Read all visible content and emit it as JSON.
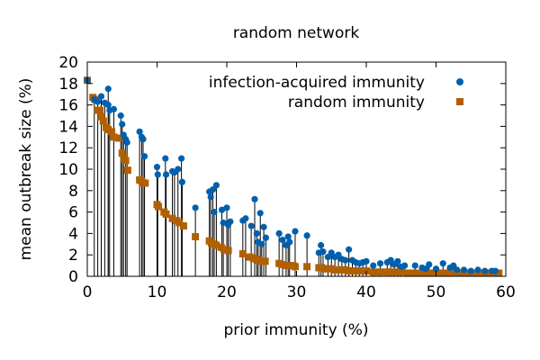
{
  "chart_data": {
    "type": "scatter",
    "title": "random network",
    "xlabel": "prior immunity (%)",
    "ylabel": "mean outbreak size (%)",
    "xlim": [
      0,
      60
    ],
    "ylim": [
      0,
      20
    ],
    "xticks": [
      0,
      10,
      20,
      30,
      40,
      50,
      60
    ],
    "yticks": [
      0,
      2,
      4,
      6,
      8,
      10,
      12,
      14,
      16,
      18,
      20
    ],
    "grid": false,
    "legend_position": "top-right",
    "series": [
      {
        "name": "infection-acquired immunity",
        "marker": "circle",
        "color": "#0060ad",
        "points": [
          [
            0,
            18.3
          ],
          [
            1,
            16.5
          ],
          [
            1.5,
            16.3
          ],
          [
            2,
            16.8
          ],
          [
            2.5,
            16.2
          ],
          [
            3,
            17.5
          ],
          [
            3,
            16
          ],
          [
            3.2,
            15.5
          ],
          [
            3.8,
            15.6
          ],
          [
            4.8,
            15
          ],
          [
            5,
            14.2
          ],
          [
            5.2,
            13.2
          ],
          [
            5.5,
            12.8
          ],
          [
            5.7,
            12.5
          ],
          [
            7.5,
            13.5
          ],
          [
            7.8,
            13
          ],
          [
            8,
            12.8
          ],
          [
            8.2,
            11.2
          ],
          [
            10,
            10.2
          ],
          [
            10.1,
            9.5
          ],
          [
            11.2,
            11
          ],
          [
            11.3,
            9.5
          ],
          [
            12.2,
            9.8
          ],
          [
            12.5,
            9.7
          ],
          [
            13,
            10
          ],
          [
            13.5,
            11
          ],
          [
            13.6,
            8.8
          ],
          [
            15.5,
            6.4
          ],
          [
            17.5,
            7.9
          ],
          [
            17.7,
            7.4
          ],
          [
            18,
            8.1
          ],
          [
            18.2,
            6
          ],
          [
            18.5,
            8.5
          ],
          [
            19.3,
            6.2
          ],
          [
            19.5,
            5
          ],
          [
            20,
            6.4
          ],
          [
            20.2,
            4.8
          ],
          [
            20.5,
            5.1
          ],
          [
            22.3,
            5.2
          ],
          [
            22.7,
            5.4
          ],
          [
            23.5,
            4.7
          ],
          [
            24,
            7.2
          ],
          [
            24.3,
            4
          ],
          [
            24.5,
            3.2
          ],
          [
            24.8,
            5.9
          ],
          [
            25,
            3
          ],
          [
            25.3,
            4.6
          ],
          [
            25.6,
            3.6
          ],
          [
            27.5,
            4
          ],
          [
            28,
            3.4
          ],
          [
            28.5,
            2.9
          ],
          [
            28.8,
            3.7
          ],
          [
            29,
            3.2
          ],
          [
            29.8,
            4.2
          ],
          [
            31.5,
            3.8
          ],
          [
            33.2,
            2.2
          ],
          [
            33.5,
            2.9
          ],
          [
            33.8,
            2.3
          ],
          [
            34.5,
            1.8
          ],
          [
            35,
            2.2
          ],
          [
            35.5,
            1.8
          ],
          [
            36,
            2
          ],
          [
            36.5,
            1.6
          ],
          [
            37,
            1.5
          ],
          [
            37.5,
            2.5
          ],
          [
            38,
            1.5
          ],
          [
            38.5,
            1.3
          ],
          [
            39,
            1.2
          ],
          [
            39.5,
            1.3
          ],
          [
            40,
            1.4
          ],
          [
            41,
            1
          ],
          [
            42,
            1.2
          ],
          [
            43,
            1.3
          ],
          [
            43.5,
            1.5
          ],
          [
            44,
            1.1
          ],
          [
            44.5,
            1.4
          ],
          [
            45,
            0.9
          ],
          [
            45.5,
            1
          ],
          [
            47,
            1
          ],
          [
            48,
            0.8
          ],
          [
            48.5,
            0.7
          ],
          [
            49,
            1.1
          ],
          [
            50,
            0.7
          ],
          [
            51,
            1.2
          ],
          [
            52,
            0.8
          ],
          [
            52.5,
            1
          ],
          [
            53,
            0.6
          ],
          [
            54,
            0.6
          ],
          [
            55,
            0.5
          ],
          [
            56,
            0.6
          ],
          [
            57,
            0.5
          ],
          [
            58,
            0.5
          ],
          [
            58.5,
            0.5
          ]
        ]
      },
      {
        "name": "random immunity",
        "marker": "square",
        "color": "#b06000",
        "points": [
          [
            0,
            18.3
          ],
          [
            0.8,
            16.7
          ],
          [
            1.1,
            16.5
          ],
          [
            1.5,
            15.5
          ],
          [
            1.8,
            15.5
          ],
          [
            2,
            14.9
          ],
          [
            2.3,
            14.5
          ],
          [
            2.7,
            13.9
          ],
          [
            3,
            13.7
          ],
          [
            3.5,
            13.5
          ],
          [
            3.8,
            13
          ],
          [
            4.5,
            12.9
          ],
          [
            5,
            11.5
          ],
          [
            5.3,
            11
          ],
          [
            5.5,
            10.8
          ],
          [
            5.8,
            9.9
          ],
          [
            7.5,
            9
          ],
          [
            7.8,
            8.9
          ],
          [
            8,
            8.7
          ],
          [
            8.3,
            8.7
          ],
          [
            10,
            6.7
          ],
          [
            10.2,
            6.5
          ],
          [
            11,
            6
          ],
          [
            11.3,
            5.8
          ],
          [
            12.2,
            5.4
          ],
          [
            12.8,
            5.2
          ],
          [
            13.2,
            5
          ],
          [
            13.8,
            4.7
          ],
          [
            15.5,
            3.7
          ],
          [
            17.5,
            3.3
          ],
          [
            17.8,
            3.1
          ],
          [
            18.2,
            3
          ],
          [
            18.5,
            2.9
          ],
          [
            19.2,
            2.7
          ],
          [
            19.6,
            2.5
          ],
          [
            20.2,
            2.4
          ],
          [
            22.3,
            2.1
          ],
          [
            23.3,
            1.8
          ],
          [
            23.8,
            1.7
          ],
          [
            24.2,
            1.6
          ],
          [
            24.6,
            1.5
          ],
          [
            25,
            1.4
          ],
          [
            25.5,
            1.4
          ],
          [
            27.5,
            1.2
          ],
          [
            28,
            1.1
          ],
          [
            28.5,
            1
          ],
          [
            29,
            1
          ],
          [
            29.5,
            1
          ],
          [
            29.8,
            0.9
          ],
          [
            31.5,
            0.9
          ],
          [
            33.2,
            0.8
          ],
          [
            33.6,
            0.8
          ],
          [
            34,
            0.7
          ],
          [
            34.5,
            0.7
          ],
          [
            35,
            0.7
          ],
          [
            35.5,
            0.6
          ],
          [
            36,
            0.6
          ],
          [
            36.5,
            0.6
          ],
          [
            37,
            0.6
          ],
          [
            37.5,
            0.5
          ],
          [
            38,
            0.5
          ],
          [
            38.5,
            0.5
          ],
          [
            39,
            0.5
          ],
          [
            39.5,
            0.5
          ],
          [
            40,
            0.5
          ],
          [
            41,
            0.4
          ],
          [
            42,
            0.4
          ],
          [
            43,
            0.4
          ],
          [
            44,
            0.4
          ],
          [
            45,
            0.4
          ],
          [
            46,
            0.3
          ],
          [
            47,
            0.3
          ],
          [
            48,
            0.3
          ],
          [
            49,
            0.3
          ],
          [
            50,
            0.3
          ],
          [
            51,
            0.3
          ],
          [
            52,
            0.3
          ],
          [
            53,
            0.3
          ],
          [
            54,
            0.3
          ],
          [
            55,
            0.3
          ],
          [
            56,
            0.3
          ],
          [
            57,
            0.3
          ],
          [
            58,
            0.3
          ],
          [
            59,
            0.3
          ]
        ]
      }
    ]
  }
}
